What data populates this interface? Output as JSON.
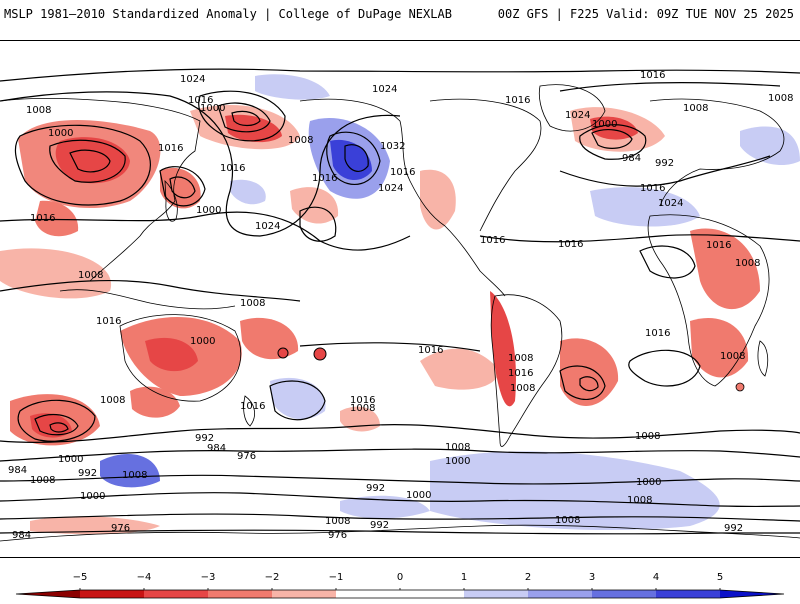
{
  "header": {
    "left_title": "MSLP 1981–2010 Standardized Anomaly | College of DuPage NEXLAB",
    "right_title": "00Z GFS | F225 Valid: 09Z TUE NOV 25 2025"
  },
  "map": {
    "contour_labels": [
      {
        "id": "c1",
        "text": "1024"
      },
      {
        "id": "c2",
        "text": "1024"
      },
      {
        "id": "c3",
        "text": "1016"
      },
      {
        "id": "c4",
        "text": "1008"
      },
      {
        "id": "c5",
        "text": "1000"
      },
      {
        "id": "c6",
        "text": "1016"
      },
      {
        "id": "c7",
        "text": "1000"
      },
      {
        "id": "c8",
        "text": "1008"
      },
      {
        "id": "c9",
        "text": "1016"
      },
      {
        "id": "c10",
        "text": "1016"
      },
      {
        "id": "c11",
        "text": "1016"
      },
      {
        "id": "c12",
        "text": "1000"
      },
      {
        "id": "c13",
        "text": "1024"
      },
      {
        "id": "c14",
        "text": "1016"
      },
      {
        "id": "c15",
        "text": "1008"
      },
      {
        "id": "c16",
        "text": "1032"
      },
      {
        "id": "c17",
        "text": "1024"
      },
      {
        "id": "c18",
        "text": "1016"
      },
      {
        "id": "c19",
        "text": "1016"
      },
      {
        "id": "c20",
        "text": "1016"
      },
      {
        "id": "c21",
        "text": "1016"
      },
      {
        "id": "c22",
        "text": "1024"
      },
      {
        "id": "c23",
        "text": "1000"
      },
      {
        "id": "c24",
        "text": "984"
      },
      {
        "id": "c25",
        "text": "992"
      },
      {
        "id": "c26",
        "text": "1016"
      },
      {
        "id": "c27",
        "text": "1024"
      },
      {
        "id": "c28",
        "text": "1016"
      },
      {
        "id": "c29",
        "text": "1008"
      },
      {
        "id": "c30",
        "text": "1008"
      },
      {
        "id": "c31",
        "text": "1008"
      },
      {
        "id": "c32",
        "text": "1016"
      },
      {
        "id": "c33",
        "text": "1008"
      },
      {
        "id": "c34",
        "text": "1008"
      },
      {
        "id": "c35",
        "text": "1016"
      },
      {
        "id": "c36",
        "text": "1016"
      },
      {
        "id": "c37",
        "text": "1016"
      },
      {
        "id": "c38",
        "text": "1016"
      },
      {
        "id": "c39",
        "text": "1008"
      },
      {
        "id": "c40",
        "text": "1016"
      },
      {
        "id": "c41",
        "text": "1008"
      },
      {
        "id": "c42",
        "text": "1008"
      },
      {
        "id": "c43",
        "text": "1000"
      },
      {
        "id": "c44",
        "text": "992"
      },
      {
        "id": "c45",
        "text": "984"
      },
      {
        "id": "c46",
        "text": "976"
      },
      {
        "id": "c47",
        "text": "984"
      },
      {
        "id": "c48",
        "text": "1000"
      },
      {
        "id": "c49",
        "text": "992"
      },
      {
        "id": "c50",
        "text": "1008"
      },
      {
        "id": "c51",
        "text": "1008"
      },
      {
        "id": "c52",
        "text": "1000"
      },
      {
        "id": "c53",
        "text": "976"
      },
      {
        "id": "c54",
        "text": "992"
      },
      {
        "id": "c55",
        "text": "1008"
      },
      {
        "id": "c56",
        "text": "976"
      },
      {
        "id": "c57",
        "text": "984"
      },
      {
        "id": "c58",
        "text": "1000"
      },
      {
        "id": "c59",
        "text": "992"
      },
      {
        "id": "c60",
        "text": "1000"
      },
      {
        "id": "c61",
        "text": "1008"
      },
      {
        "id": "c62",
        "text": "1008"
      },
      {
        "id": "c63",
        "text": "1008"
      },
      {
        "id": "c64",
        "text": "992"
      },
      {
        "id": "c65",
        "text": "1000"
      },
      {
        "id": "c66",
        "text": "1008"
      },
      {
        "id": "c67",
        "text": "1008"
      }
    ]
  },
  "colorbar": {
    "ticks": [
      "−5",
      "−4",
      "−3",
      "−2",
      "−1",
      "0",
      "1",
      "2",
      "3",
      "4",
      "5"
    ],
    "colors": {
      "neg5": "#8b0000",
      "neg4": "#c81414",
      "neg3": "#e64646",
      "neg2": "#f07a6e",
      "neg1": "#f8b4a8",
      "zero": "#ffffff",
      "pos1": "#c8ccf4",
      "pos2": "#9aa0ec",
      "pos3": "#6670e0",
      "pos4": "#3a40d8",
      "pos5": "#0a10c8"
    }
  }
}
